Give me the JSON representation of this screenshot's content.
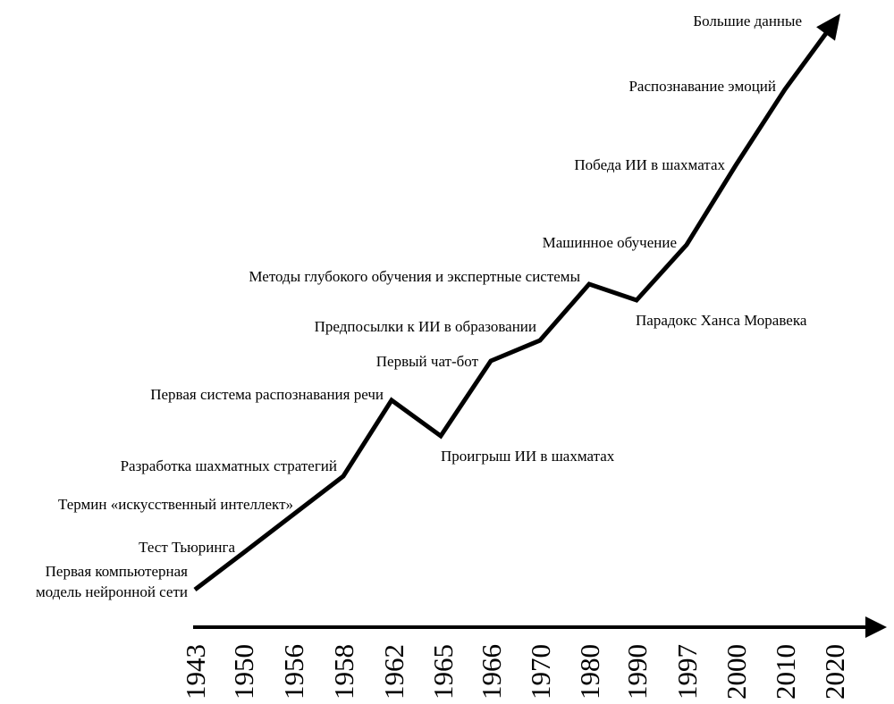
{
  "chart_data": {
    "type": "line",
    "colors": {
      "line": "#000000",
      "background": "#ffffff"
    },
    "x_axis_ticks": [
      "1943",
      "1950",
      "1956",
      "1958",
      "1962",
      "1965",
      "1966",
      "1970",
      "1980",
      "1990",
      "1997",
      "2000",
      "2010",
      "2020"
    ],
    "events": [
      {
        "year": "1943",
        "label_lines": [
          "Первая компьютерная",
          "модель нейронной сети"
        ]
      },
      {
        "year": "1950",
        "label_lines": [
          "Тест Тьюринга"
        ]
      },
      {
        "year": "1956",
        "label_lines": [
          "Термин «искусственный интеллект»"
        ]
      },
      {
        "year": "1958",
        "label_lines": [
          "Разработка шахматных стратегий"
        ]
      },
      {
        "year": "1962",
        "label_lines": [
          "Первая система распознавания речи"
        ]
      },
      {
        "year": "1965",
        "label_lines": [
          "Проигрыш ИИ в шахматах"
        ]
      },
      {
        "year": "1966",
        "label_lines": [
          "Первый чат-бот"
        ]
      },
      {
        "year": "1970",
        "label_lines": [
          "Предпосылки к ИИ в образовании"
        ]
      },
      {
        "year": "1980",
        "label_lines": [
          "Методы глубокого обучения и экспертные системы"
        ]
      },
      {
        "year": "1990",
        "label_lines": [
          "Парадокс Ханса Моравека"
        ]
      },
      {
        "year": "1997",
        "label_lines": [
          "Машинное обучение"
        ]
      },
      {
        "year": "2000",
        "label_lines": [
          "Победа ИИ в шахматах"
        ]
      },
      {
        "year": "2010",
        "label_lines": [
          "Распознавание эмоций"
        ]
      },
      {
        "year": "2020",
        "label_lines": [
          "Большие данные"
        ]
      }
    ]
  }
}
